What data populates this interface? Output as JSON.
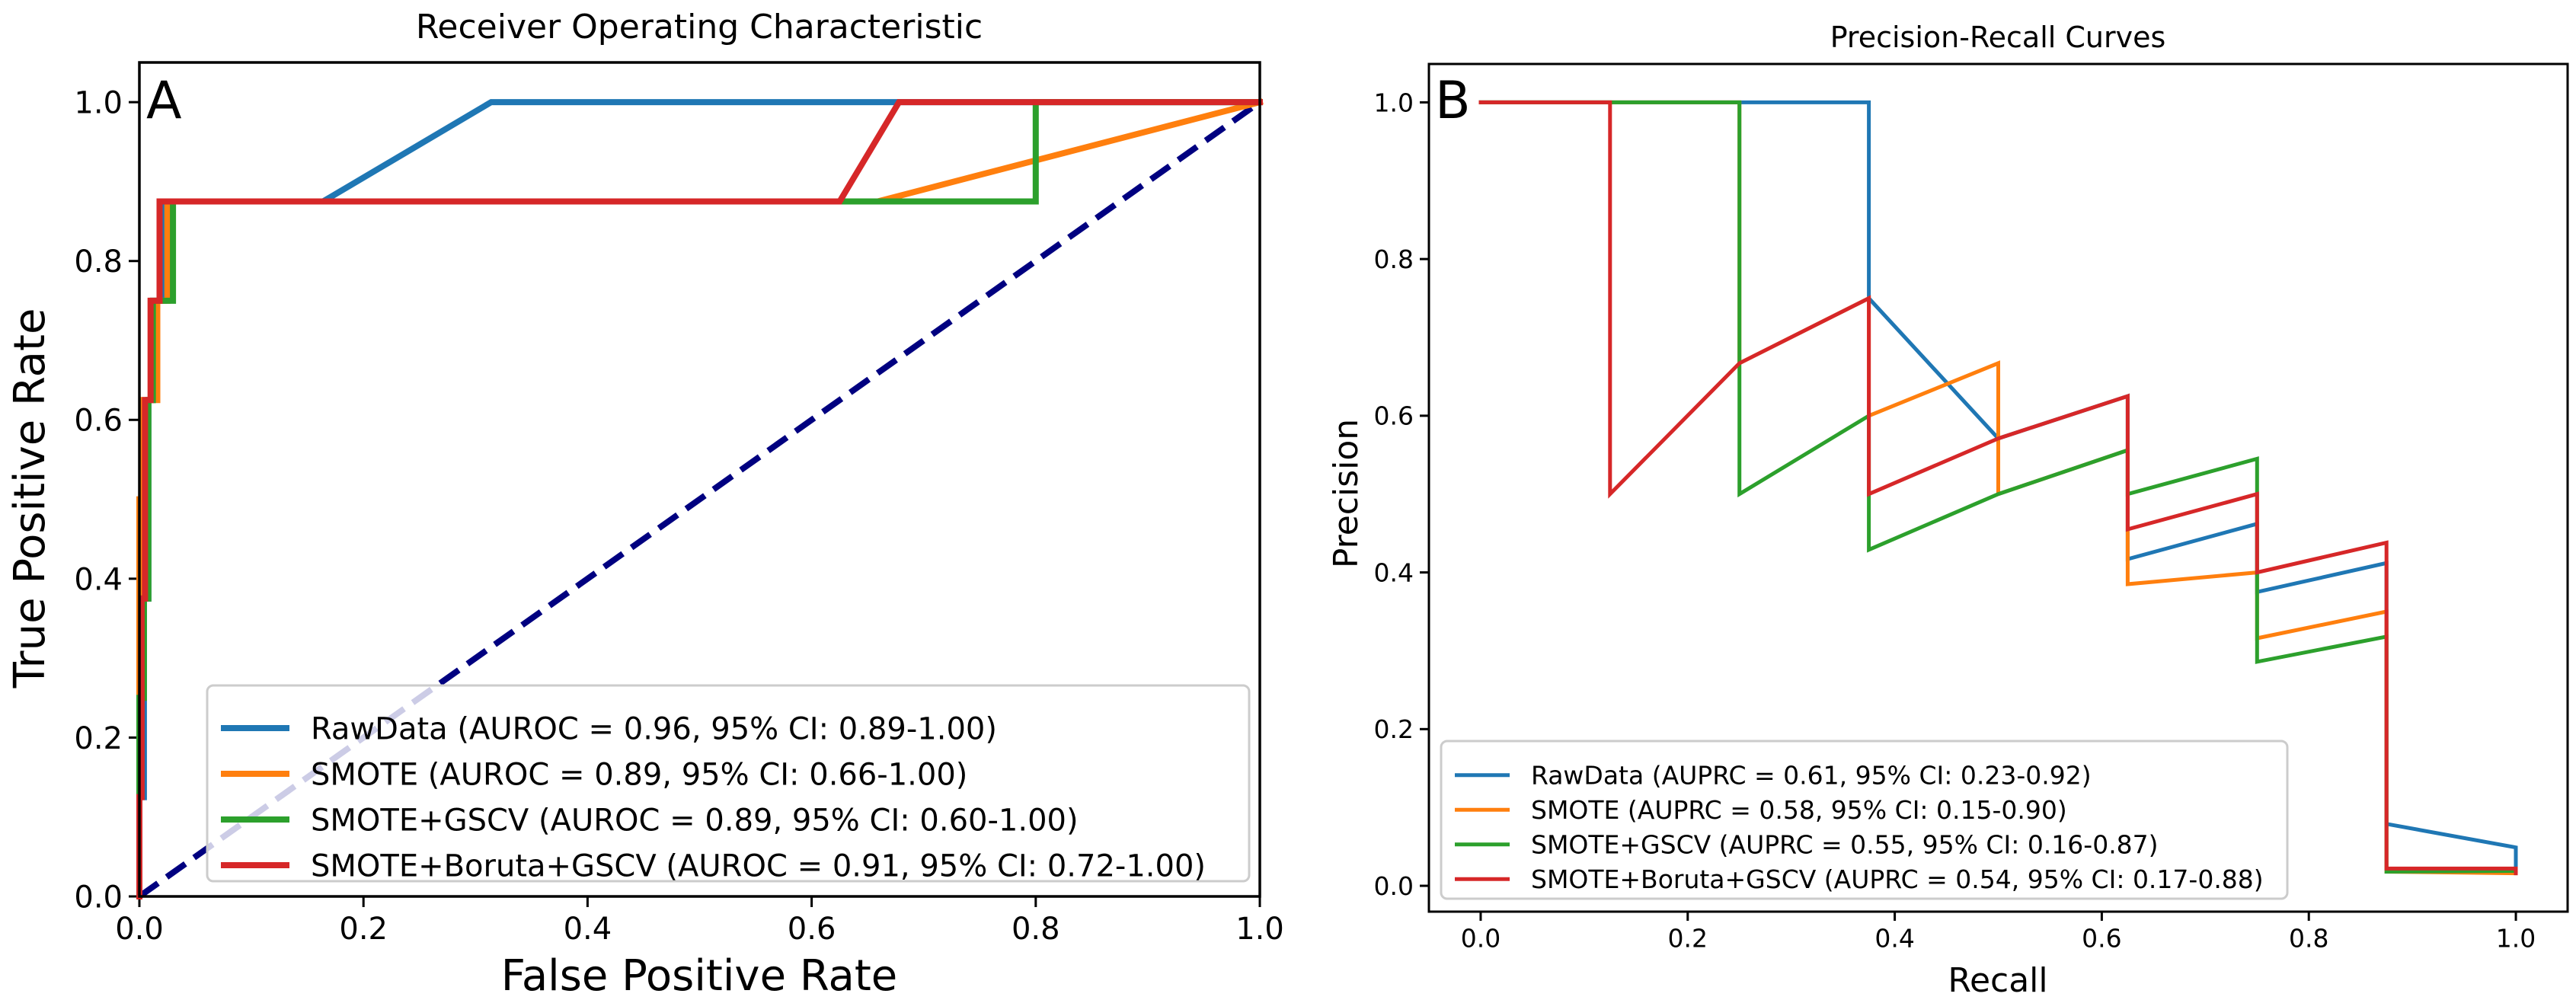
{
  "chart_data": [
    {
      "type": "line",
      "panel_label": "A",
      "title": "Receiver Operating Characteristic",
      "xlabel": "False Positive Rate",
      "ylabel": "True Positive Rate",
      "xlim": [
        0.0,
        1.0
      ],
      "ylim": [
        0.0,
        1.05
      ],
      "xticks": [
        0.0,
        0.2,
        0.4,
        0.6,
        0.8,
        1.0
      ],
      "xtick_labels": [
        "0.0",
        "0.2",
        "0.4",
        "0.6",
        "0.8",
        "1.0"
      ],
      "yticks": [
        0.0,
        0.2,
        0.4,
        0.6,
        0.8,
        1.0
      ],
      "ytick_labels": [
        "0.0",
        "0.2",
        "0.4",
        "0.6",
        "0.8",
        "1.0"
      ],
      "grid": false,
      "legend_position": "lower-right",
      "reference_line": {
        "name": "chance",
        "x": [
          0.0,
          1.0
        ],
        "y": [
          0.0,
          1.0
        ],
        "color": "#000080",
        "style": "dashed"
      },
      "series": [
        {
          "name": "RawData",
          "legend_label": "RawData (AUROC = 0.96, 95% CI: 0.89-1.00)",
          "color": "#1f77b4",
          "x": [
            0.0,
            0.0,
            0.004,
            0.004,
            0.008,
            0.008,
            0.012,
            0.012,
            0.022,
            0.022,
            0.164,
            0.314,
            1.0
          ],
          "y": [
            0.0,
            0.125,
            0.125,
            0.375,
            0.375,
            0.625,
            0.625,
            0.75,
            0.75,
            0.875,
            0.875,
            1.0,
            1.0
          ]
        },
        {
          "name": "SMOTE",
          "legend_label": "SMOTE (AUROC = 0.89, 95% CI: 0.66-1.00)",
          "color": "#ff7f0e",
          "x": [
            0.0,
            0.0,
            0.003,
            0.003,
            0.008,
            0.008,
            0.016,
            0.016,
            0.025,
            0.025,
            0.659,
            1.0
          ],
          "y": [
            0.0,
            0.5,
            0.5,
            0.625,
            0.625,
            0.625,
            0.625,
            0.75,
            0.75,
            0.875,
            0.875,
            1.0
          ]
        },
        {
          "name": "SMOTE+GSCV",
          "legend_label": "SMOTE+GSCV (AUROC = 0.89, 95% CI: 0.60-1.00)",
          "color": "#2ca02c",
          "x": [
            0.0,
            0.0,
            0.004,
            0.004,
            0.008,
            0.008,
            0.012,
            0.012,
            0.03,
            0.03,
            0.8,
            0.8,
            1.0
          ],
          "y": [
            0.0,
            0.25,
            0.25,
            0.375,
            0.375,
            0.625,
            0.625,
            0.75,
            0.75,
            0.875,
            0.875,
            1.0,
            1.0
          ]
        },
        {
          "name": "SMOTE+Boruta+GSCV",
          "legend_label": "SMOTE+Boruta+GSCV (AUROC = 0.91, 95% CI: 0.72-1.00)",
          "color": "#d62728",
          "x": [
            0.0,
            0.0,
            0.002,
            0.002,
            0.005,
            0.005,
            0.01,
            0.01,
            0.018,
            0.018,
            0.625,
            0.678,
            1.0
          ],
          "y": [
            0.0,
            0.125,
            0.125,
            0.375,
            0.375,
            0.625,
            0.625,
            0.75,
            0.75,
            0.875,
            0.875,
            1.0,
            1.0
          ]
        }
      ]
    },
    {
      "type": "line",
      "panel_label": "B",
      "title": "Precision-Recall Curves",
      "xlabel": "Recall",
      "ylabel": "Precision",
      "xlim": [
        -0.05,
        1.05
      ],
      "ylim": [
        -0.033,
        1.049
      ],
      "xticks": [
        0.0,
        0.2,
        0.4,
        0.6,
        0.8,
        1.0
      ],
      "xtick_labels": [
        "0.0",
        "0.2",
        "0.4",
        "0.6",
        "0.8",
        "1.0"
      ],
      "yticks": [
        0.0,
        0.2,
        0.4,
        0.6,
        0.8,
        1.0
      ],
      "ytick_labels": [
        "0.0",
        "0.2",
        "0.4",
        "0.6",
        "0.8",
        "1.0"
      ],
      "grid": false,
      "legend_position": "lower-left",
      "series": [
        {
          "name": "RawData",
          "legend_label": "RawData (AUPRC = 0.61, 95% CI: 0.23-0.92)",
          "color": "#1f77b4",
          "x": [
            0.0,
            0.375,
            0.375,
            0.5,
            0.625,
            0.625,
            0.75,
            0.75,
            0.875,
            0.875,
            1.0,
            1.0
          ],
          "y": [
            1.0,
            1.0,
            0.75,
            0.571,
            0.625,
            0.417,
            0.462,
            0.375,
            0.412,
            0.079,
            0.049,
            0.022
          ]
        },
        {
          "name": "SMOTE",
          "legend_label": "SMOTE (AUPRC = 0.58, 95% CI: 0.15-0.90)",
          "color": "#ff7f0e",
          "x": [
            0.0,
            0.25,
            0.25,
            0.375,
            0.375,
            0.5,
            0.5,
            0.625,
            0.625,
            0.75,
            0.75,
            0.875,
            0.875,
            1.0
          ],
          "y": [
            1.0,
            1.0,
            0.667,
            0.75,
            0.6,
            0.667,
            0.5,
            0.556,
            0.385,
            0.4,
            0.316,
            0.35,
            0.018,
            0.016
          ]
        },
        {
          "name": "SMOTE+GSCV",
          "legend_label": "SMOTE+GSCV (AUPRC = 0.55, 95% CI: 0.16-0.87)",
          "color": "#2ca02c",
          "x": [
            0.0,
            0.25,
            0.25,
            0.375,
            0.375,
            0.5,
            0.625,
            0.625,
            0.75,
            0.75,
            0.875,
            0.875,
            1.0
          ],
          "y": [
            1.0,
            1.0,
            0.5,
            0.6,
            0.429,
            0.5,
            0.556,
            0.5,
            0.545,
            0.286,
            0.318,
            0.018,
            0.019
          ]
        },
        {
          "name": "SMOTE+Boruta+GSCV",
          "legend_label": "SMOTE+Boruta+GSCV (AUPRC = 0.54, 95% CI: 0.17-0.88)",
          "color": "#d62728",
          "x": [
            0.0,
            0.125,
            0.125,
            0.25,
            0.375,
            0.375,
            0.5,
            0.625,
            0.625,
            0.75,
            0.75,
            0.875,
            0.875,
            1.0,
            1.0
          ],
          "y": [
            1.0,
            1.0,
            0.5,
            0.667,
            0.75,
            0.5,
            0.571,
            0.625,
            0.455,
            0.5,
            0.4,
            0.438,
            0.022,
            0.022,
            0.016
          ]
        }
      ]
    }
  ]
}
